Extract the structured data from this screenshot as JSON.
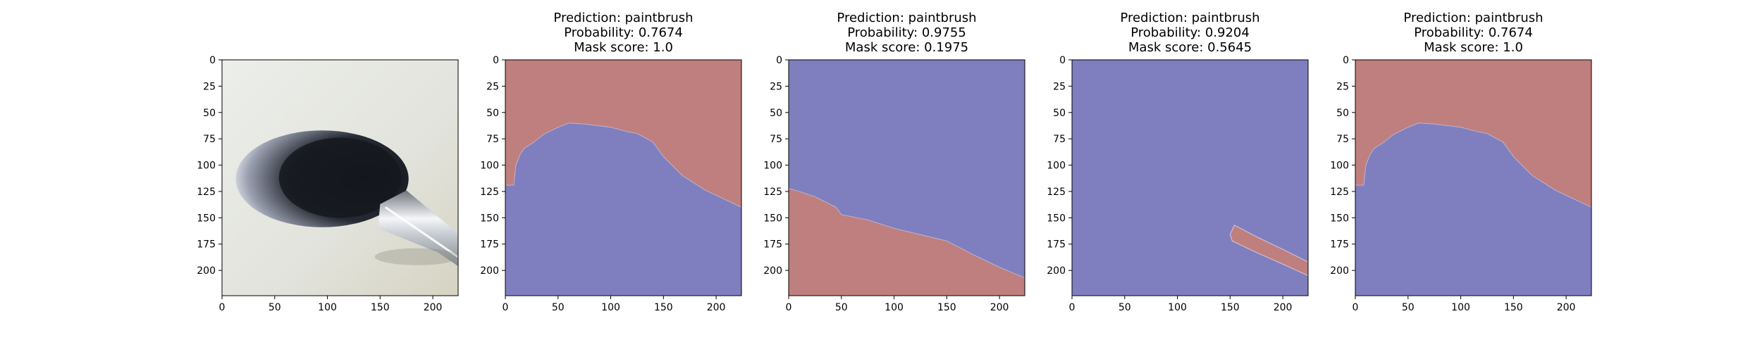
{
  "figure": {
    "background": "#ffffff"
  },
  "colors": {
    "background_region": "#7f7fbf",
    "salient_region": "#bf7f7f",
    "axes_edge": "#000000"
  },
  "chart_data": [
    {
      "type": "image",
      "content": "photo of a makeup brush with black and white bristles and a silver metal ferrule on a light grey background",
      "title": [],
      "xticks": [
        0,
        50,
        100,
        150,
        200
      ],
      "yticks": [
        0,
        25,
        50,
        75,
        100,
        125,
        150,
        175,
        200
      ],
      "xlim": [
        0,
        224
      ],
      "ylim": [
        224,
        0
      ]
    },
    {
      "type": "heatmap",
      "title": [
        "Prediction: paintbrush",
        "Probability: 0.7674",
        "Mask score: 1.0"
      ],
      "xticks": [
        0,
        50,
        100,
        150,
        200
      ],
      "yticks": [
        0,
        25,
        50,
        75,
        100,
        125,
        150,
        175,
        200
      ],
      "xlim": [
        0,
        224
      ],
      "ylim": [
        224,
        0
      ],
      "mask_region": "red above boundary, blue below",
      "boundary": [
        [
          0,
          119
        ],
        [
          8,
          119
        ],
        [
          10,
          100
        ],
        [
          14,
          90
        ],
        [
          18,
          84
        ],
        [
          26,
          79
        ],
        [
          36,
          71
        ],
        [
          48,
          65
        ],
        [
          60,
          60
        ],
        [
          75,
          61
        ],
        [
          100,
          64
        ],
        [
          115,
          68
        ],
        [
          125,
          70
        ],
        [
          140,
          78
        ],
        [
          150,
          92
        ],
        [
          168,
          110
        ],
        [
          190,
          124
        ],
        [
          224,
          140
        ]
      ]
    },
    {
      "type": "heatmap",
      "title": [
        "Prediction: paintbrush",
        "Probability: 0.9755",
        "Mask score: 0.1975"
      ],
      "xticks": [
        0,
        50,
        100,
        150,
        200
      ],
      "yticks": [
        0,
        25,
        50,
        75,
        100,
        125,
        150,
        175,
        200
      ],
      "xlim": [
        0,
        224
      ],
      "ylim": [
        224,
        0
      ],
      "mask_region": "red below boundary, blue above",
      "boundary": [
        [
          0,
          122
        ],
        [
          10,
          125
        ],
        [
          25,
          130
        ],
        [
          45,
          140
        ],
        [
          50,
          147
        ],
        [
          75,
          152
        ],
        [
          100,
          160
        ],
        [
          125,
          166
        ],
        [
          150,
          172
        ],
        [
          175,
          185
        ],
        [
          200,
          197
        ],
        [
          224,
          207
        ]
      ]
    },
    {
      "type": "heatmap",
      "title": [
        "Prediction: paintbrush",
        "Probability: 0.9204",
        "Mask score: 0.5645"
      ],
      "xticks": [
        0,
        50,
        100,
        150,
        200
      ],
      "yticks": [
        0,
        25,
        50,
        75,
        100,
        125,
        150,
        175,
        200
      ],
      "xlim": [
        0,
        224
      ],
      "ylim": [
        224,
        0
      ],
      "mask_region": "red diagonal strip, blue elsewhere",
      "region": [
        [
          150,
          166
        ],
        [
          154,
          157
        ],
        [
          175,
          168
        ],
        [
          200,
          180
        ],
        [
          224,
          192
        ],
        [
          224,
          205
        ],
        [
          200,
          194
        ],
        [
          175,
          183
        ],
        [
          152,
          172
        ]
      ]
    },
    {
      "type": "heatmap",
      "title": [
        "Prediction: paintbrush",
        "Probability: 0.7674",
        "Mask score: 1.0"
      ],
      "xticks": [
        0,
        50,
        100,
        150,
        200
      ],
      "yticks": [
        0,
        25,
        50,
        75,
        100,
        125,
        150,
        175,
        200
      ],
      "xlim": [
        0,
        224
      ],
      "ylim": [
        224,
        0
      ],
      "mask_region": "red above boundary, blue below",
      "boundary": [
        [
          0,
          119
        ],
        [
          8,
          119
        ],
        [
          10,
          100
        ],
        [
          14,
          90
        ],
        [
          18,
          84
        ],
        [
          26,
          79
        ],
        [
          36,
          71
        ],
        [
          48,
          65
        ],
        [
          60,
          60
        ],
        [
          75,
          61
        ],
        [
          100,
          64
        ],
        [
          115,
          68
        ],
        [
          125,
          70
        ],
        [
          140,
          78
        ],
        [
          150,
          92
        ],
        [
          168,
          110
        ],
        [
          190,
          124
        ],
        [
          224,
          140
        ]
      ]
    }
  ]
}
